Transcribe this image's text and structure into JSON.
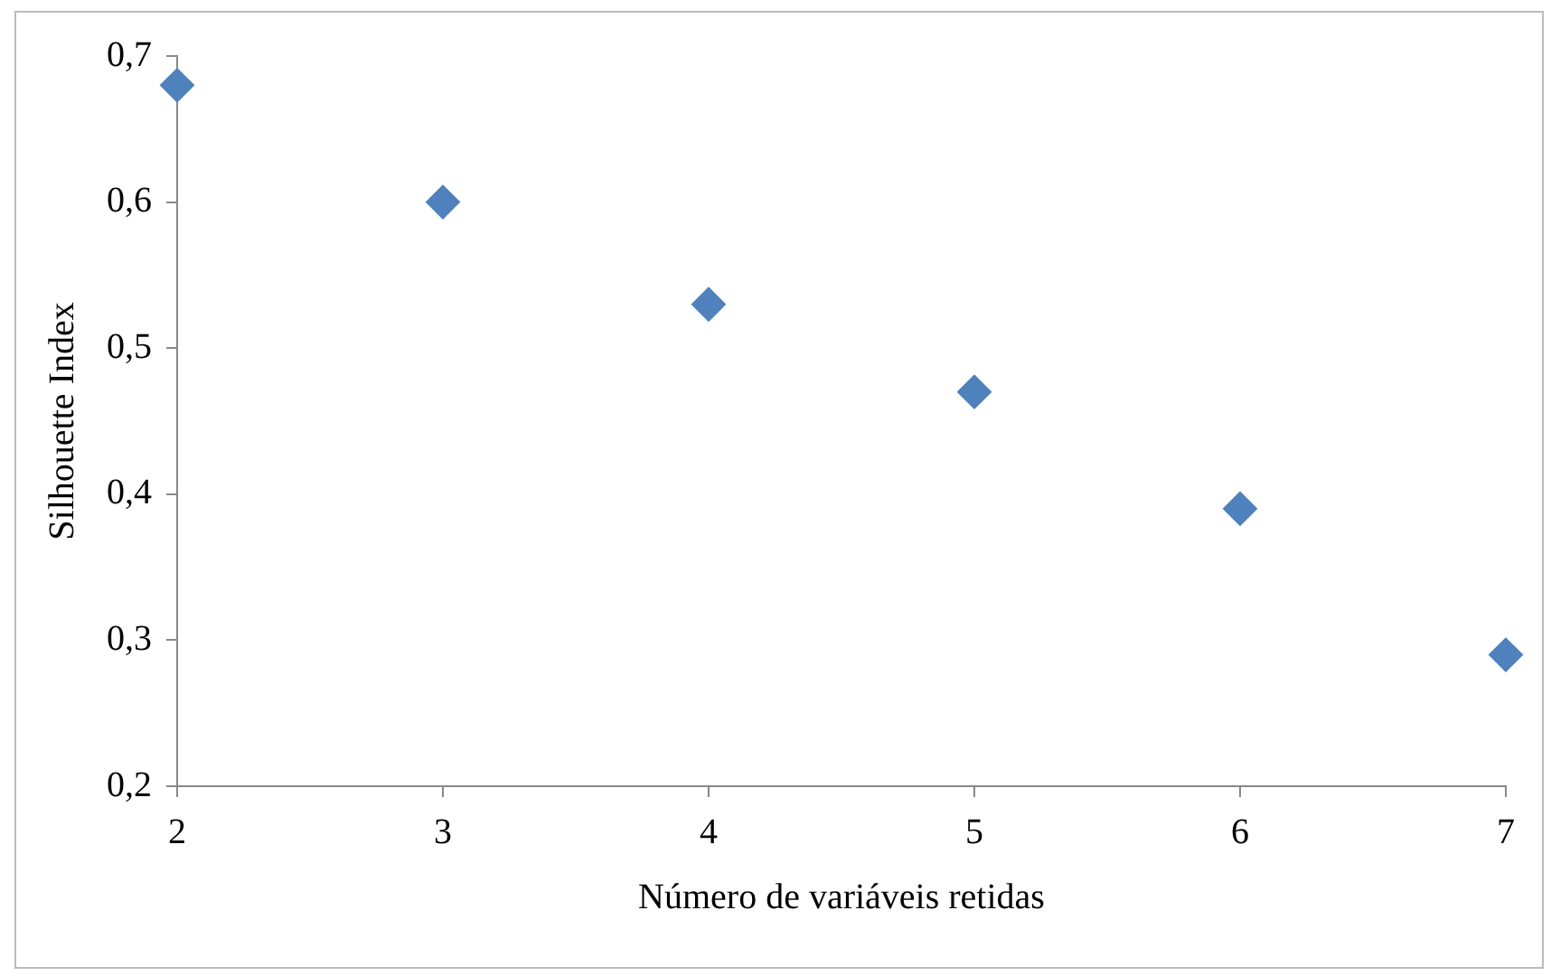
{
  "chart_data": {
    "type": "scatter",
    "xlabel": "Número de variáveis retidas",
    "ylabel": "Silhouette Index",
    "x": [
      2,
      3,
      4,
      5,
      6,
      7
    ],
    "series": [
      {
        "color": "#4f81bd",
        "values": [
          0.68,
          0.6,
          0.53,
          0.47,
          0.39,
          0.29
        ]
      }
    ],
    "xlim": [
      2,
      7
    ],
    "xticks": [
      2,
      3,
      4,
      5,
      6,
      7
    ],
    "ylim": [
      0.2,
      0.7
    ],
    "yticks": [
      {
        "value": 0.2,
        "label": "0,2"
      },
      {
        "value": 0.3,
        "label": "0,3"
      },
      {
        "value": 0.4,
        "label": "0,4"
      },
      {
        "value": 0.5,
        "label": "0,5"
      },
      {
        "value": 0.6,
        "label": "0,6"
      },
      {
        "value": 0.7,
        "label": "0,7"
      }
    ],
    "grid": false,
    "legend": false,
    "marker": "diamond"
  }
}
